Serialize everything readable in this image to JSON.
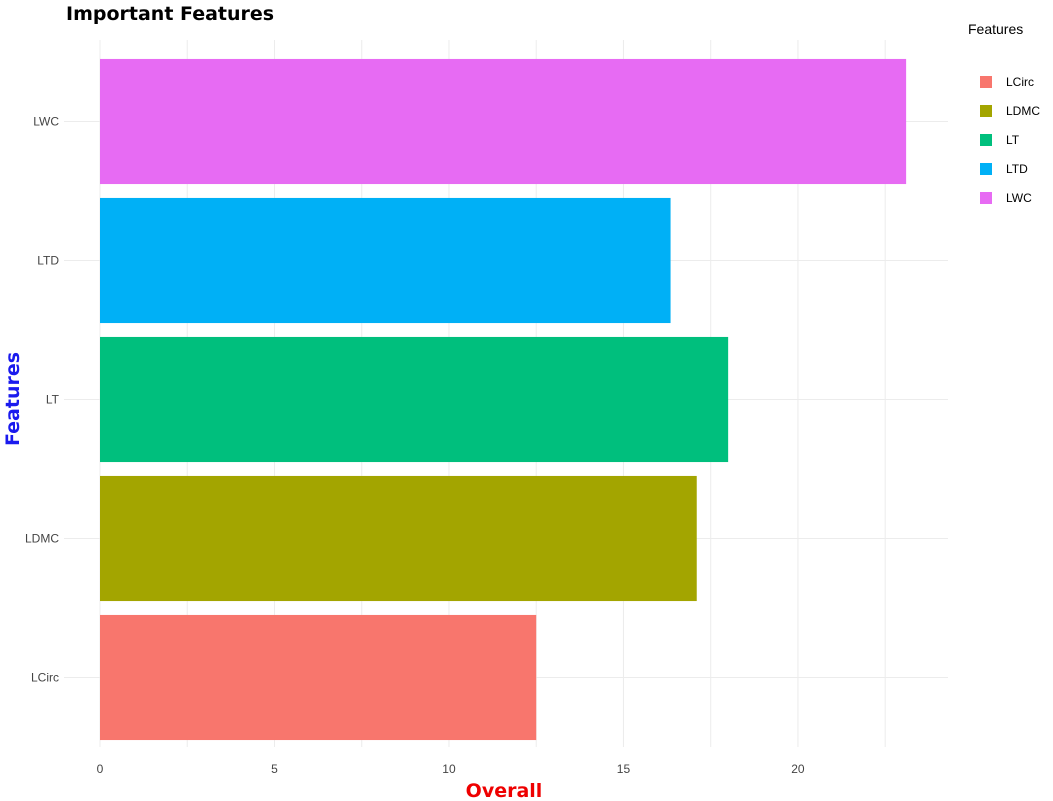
{
  "chart_data": {
    "type": "bar",
    "orientation": "horizontal",
    "title": "Important Features",
    "xlabel": "Overall",
    "ylabel": "Features",
    "xlabel_color": "#ee0000",
    "ylabel_color": "#1a1aee",
    "categories": [
      "LCirc",
      "LDMC",
      "LT",
      "LTD",
      "LWC"
    ],
    "values": [
      12.5,
      17.1,
      18.0,
      16.35,
      23.1
    ],
    "colors": [
      "#F8766D",
      "#A3A500",
      "#00BF7D",
      "#00B0F6",
      "#E76BF3"
    ],
    "xlim": [
      0,
      24.3
    ],
    "xticks": [
      0,
      5,
      10,
      15,
      20
    ],
    "xtick_labels": [
      "0",
      "5",
      "10",
      "15",
      "20"
    ],
    "grid": true,
    "legend": {
      "title": "Features",
      "position": "right",
      "entries": [
        "LCirc",
        "LDMC",
        "LT",
        "LTD",
        "LWC"
      ]
    }
  }
}
